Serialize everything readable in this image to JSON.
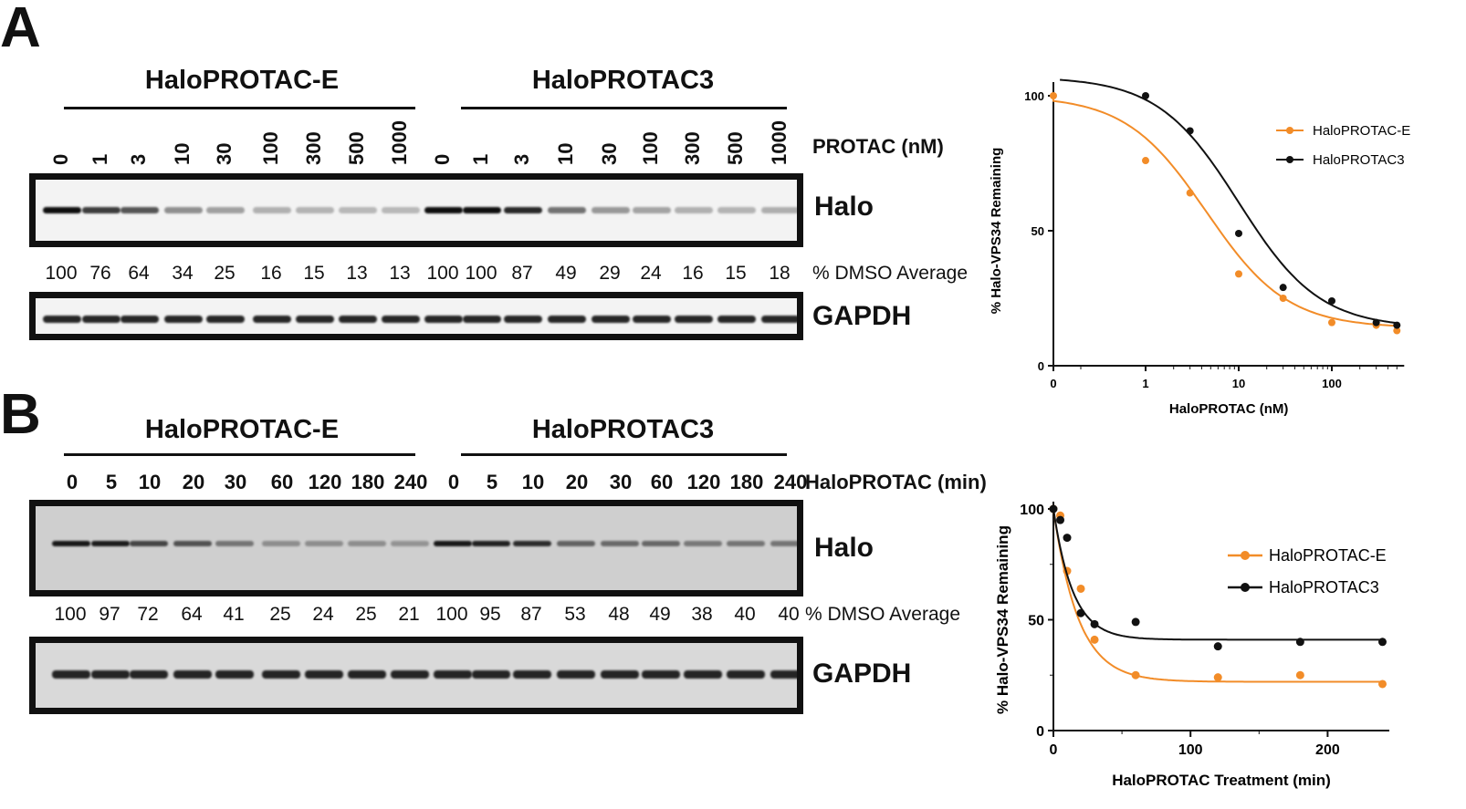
{
  "panelA": {
    "letter": "A",
    "groups": [
      "HaloPROTAC-E",
      "HaloPROTAC3"
    ],
    "conc_row_title": "PROTAC (nM)",
    "lanes": [
      "0",
      "1",
      "3",
      "10",
      "30",
      "100",
      "300",
      "500",
      "1000",
      "0",
      "1",
      "3",
      "10",
      "30",
      "100",
      "300",
      "500",
      "1000"
    ],
    "halo_label": "Halo",
    "gapdh_label": "GAPDH",
    "pct_row_title": "% DMSO Average",
    "pct_values": [
      "100",
      "76",
      "64",
      "34",
      "25",
      "16",
      "15",
      "13",
      "13",
      "100",
      "100",
      "87",
      "49",
      "29",
      "24",
      "16",
      "15",
      "18"
    ]
  },
  "panelB": {
    "letter": "B",
    "groups": [
      "HaloPROTAC-E",
      "HaloPROTAC3"
    ],
    "time_row_title": "HaloPROTAC (min)",
    "lanes": [
      "0",
      "5",
      "10",
      "20",
      "30",
      "60",
      "120",
      "180",
      "240",
      "0",
      "5",
      "10",
      "20",
      "30",
      "60",
      "120",
      "180",
      "240"
    ],
    "halo_label": "Halo",
    "gapdh_label": "GAPDH",
    "pct_row_title": "% DMSO Average",
    "pct_values": [
      "100",
      "97",
      "72",
      "64",
      "41",
      "25",
      "24",
      "25",
      "21",
      "100",
      "95",
      "87",
      "53",
      "48",
      "49",
      "38",
      "40",
      "40"
    ]
  },
  "colors": {
    "orange": "#f28c28",
    "black": "#111111"
  },
  "chart_data": [
    {
      "type": "scatter",
      "title": "",
      "xlabel": "HaloPROTAC (nM)",
      "ylabel": "% Halo-VPS34 Remaining",
      "xscale": "log",
      "xticks": [
        "0",
        "1",
        "10",
        "100"
      ],
      "yticks": [
        "0",
        "50",
        "100"
      ],
      "ylim": [
        0,
        105
      ],
      "legend_position": "top-right",
      "series": [
        {
          "name": "HaloPROTAC-E",
          "color": "#f28c28",
          "x": [
            0,
            1,
            3,
            10,
            30,
            100,
            300,
            500
          ],
          "y": [
            100,
            76,
            64,
            34,
            25,
            16,
            15,
            13
          ],
          "fit": {
            "top": 100,
            "bottom": 14,
            "ec50": 4.5,
            "hill": 1.0
          }
        },
        {
          "name": "HaloPROTAC3",
          "color": "#111111",
          "x": [
            1,
            3,
            10,
            30,
            100,
            300,
            500
          ],
          "y": [
            100,
            87,
            49,
            29,
            24,
            16,
            15
          ],
          "fit": {
            "top": 107,
            "bottom": 14,
            "ec50": 10,
            "hill": 1.0
          }
        }
      ]
    },
    {
      "type": "scatter",
      "title": "",
      "xlabel": "HaloPROTAC Treatment (min)",
      "ylabel": "% Halo-VPS34 Remaining",
      "xticks": [
        "0",
        "100",
        "200"
      ],
      "yticks": [
        "0",
        "50",
        "100"
      ],
      "xlim": [
        0,
        245
      ],
      "ylim": [
        0,
        100
      ],
      "legend_position": "top-right",
      "series": [
        {
          "name": "HaloPROTAC-E",
          "color": "#f28c28",
          "x": [
            0,
            5,
            10,
            20,
            30,
            60,
            120,
            180,
            240
          ],
          "y": [
            100,
            97,
            72,
            64,
            41,
            25,
            24,
            25,
            21
          ],
          "fit": {
            "plateau": 22,
            "k": 0.055
          }
        },
        {
          "name": "HaloPROTAC3",
          "color": "#111111",
          "x": [
            0,
            5,
            10,
            20,
            30,
            60,
            120,
            180,
            240
          ],
          "y": [
            100,
            95,
            87,
            53,
            48,
            49,
            38,
            40,
            40
          ],
          "fit": {
            "plateau": 41,
            "k": 0.07
          }
        }
      ]
    }
  ]
}
